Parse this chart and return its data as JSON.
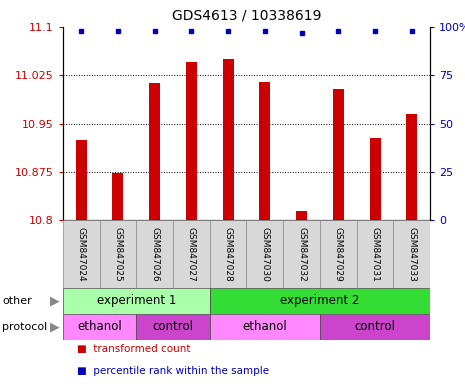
{
  "title": "GDS4613 / 10338619",
  "samples": [
    "GSM847024",
    "GSM847025",
    "GSM847026",
    "GSM847027",
    "GSM847028",
    "GSM847030",
    "GSM847032",
    "GSM847029",
    "GSM847031",
    "GSM847033"
  ],
  "bar_values": [
    10.925,
    10.873,
    11.013,
    11.045,
    11.05,
    11.015,
    10.815,
    11.003,
    10.927,
    10.965
  ],
  "percentile_values": [
    98,
    98,
    98,
    98,
    98,
    98,
    97,
    98,
    98,
    98
  ],
  "ylim_left": [
    10.8,
    11.1
  ],
  "ylim_right": [
    0,
    100
  ],
  "yticks_left": [
    10.8,
    10.875,
    10.95,
    11.025,
    11.1
  ],
  "yticks_right": [
    0,
    25,
    50,
    75,
    100
  ],
  "bar_color": "#cc0000",
  "dot_color": "#0000bb",
  "background_color": "#ffffff",
  "other_groups": [
    {
      "label": "experiment 1",
      "start": 0,
      "end": 4,
      "color": "#aaffaa"
    },
    {
      "label": "experiment 2",
      "start": 4,
      "end": 10,
      "color": "#33dd33"
    }
  ],
  "protocol_groups": [
    {
      "label": "ethanol",
      "start": 0,
      "end": 2,
      "color": "#ff88ff"
    },
    {
      "label": "control",
      "start": 2,
      "end": 4,
      "color": "#cc44cc"
    },
    {
      "label": "ethanol",
      "start": 4,
      "end": 7,
      "color": "#ff88ff"
    },
    {
      "label": "control",
      "start": 7,
      "end": 10,
      "color": "#cc44cc"
    }
  ],
  "legend_items": [
    {
      "label": "transformed count",
      "color": "#cc0000",
      "marker": "s"
    },
    {
      "label": "percentile rank within the sample",
      "color": "#0000bb",
      "marker": "s"
    }
  ],
  "other_label": "other",
  "protocol_label": "protocol",
  "sample_box_color": "#d8d8d8",
  "bar_width": 0.3
}
